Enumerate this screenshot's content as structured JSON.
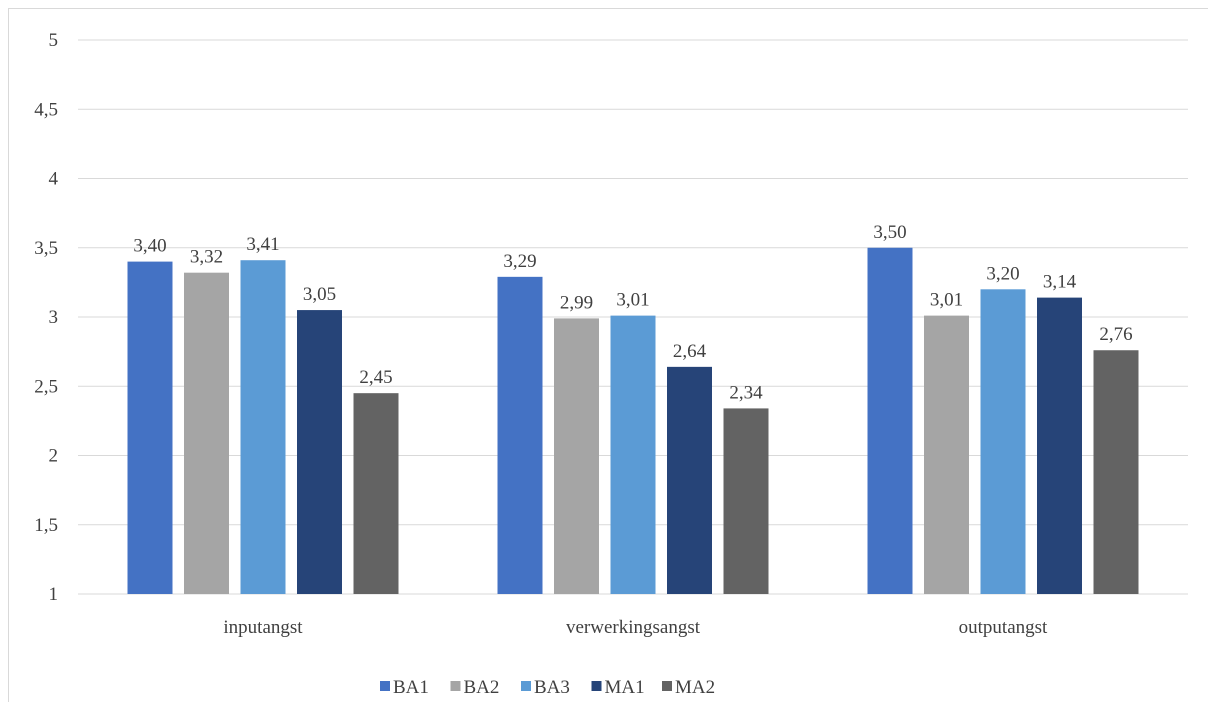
{
  "chart_data": {
    "type": "bar",
    "categories": [
      "inputangst",
      "verwerkingsangst",
      "outputangst"
    ],
    "series": [
      {
        "name": "BA1",
        "color": "#4472c4",
        "values": [
          3.4,
          3.29,
          3.5
        ],
        "labels": [
          "3,40",
          "3,29",
          "3,50"
        ]
      },
      {
        "name": "BA2",
        "color": "#a5a5a5",
        "values": [
          3.32,
          2.99,
          3.01
        ],
        "labels": [
          "3,32",
          "2,99",
          "3,01"
        ]
      },
      {
        "name": "BA3",
        "color": "#5b9bd5",
        "values": [
          3.41,
          3.01,
          3.2
        ],
        "labels": [
          "3,41",
          "3,01",
          "3,20"
        ]
      },
      {
        "name": "MA1",
        "color": "#264478",
        "values": [
          3.05,
          2.64,
          3.14
        ],
        "labels": [
          "3,05",
          "2,64",
          "3,14"
        ]
      },
      {
        "name": "MA2",
        "color": "#636363",
        "values": [
          2.45,
          2.34,
          2.76
        ],
        "labels": [
          "2,45",
          "2,34",
          "2,76"
        ]
      }
    ],
    "y_ticks": [
      "1",
      "1,5",
      "2",
      "2,5",
      "3",
      "3,5",
      "4",
      "4,5",
      "5"
    ],
    "ylim": [
      1,
      5
    ],
    "title": "",
    "xlabel": "",
    "ylabel": "",
    "grid": true,
    "legend_position": "bottom",
    "colors": {
      "gridline": "#d9d9d9",
      "text": "#404040"
    }
  }
}
